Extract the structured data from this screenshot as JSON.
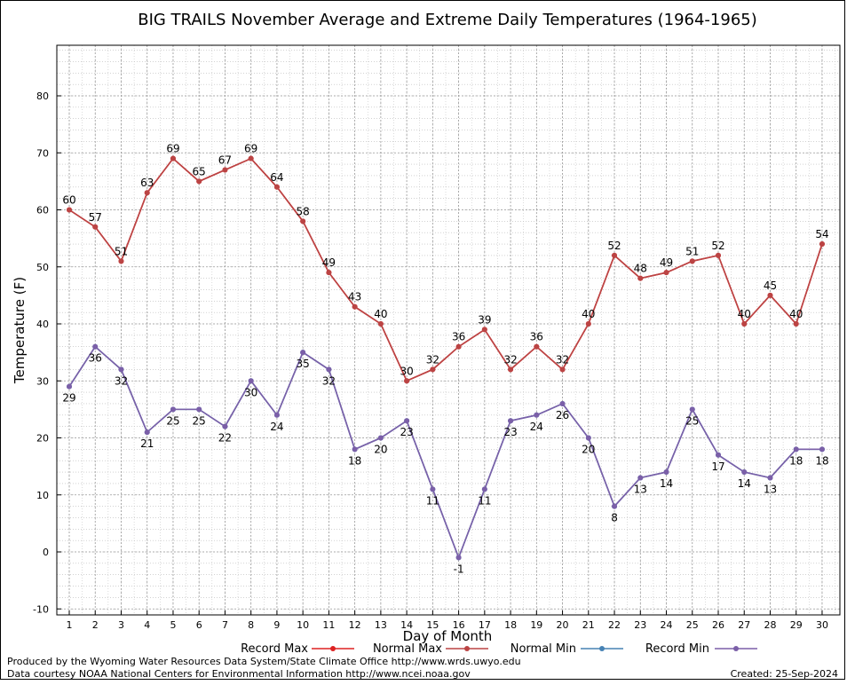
{
  "chart_data": {
    "type": "line",
    "title": "BIG TRAILS November Average and Extreme Daily Temperatures (1964-1965)",
    "xlabel": "Day of Month",
    "ylabel": "Temperature (F)",
    "ylim": [
      -10,
      90
    ],
    "yticks": [
      -10,
      0,
      10,
      20,
      30,
      40,
      50,
      60,
      70,
      80
    ],
    "x": [
      1,
      2,
      3,
      4,
      5,
      6,
      7,
      8,
      9,
      10,
      11,
      12,
      13,
      14,
      15,
      16,
      17,
      18,
      19,
      20,
      21,
      22,
      23,
      24,
      25,
      26,
      27,
      28,
      29,
      30
    ],
    "grid": true,
    "legend_position": "bottom",
    "series": [
      {
        "name": "Record Max",
        "color": "#dd2222",
        "values": [
          60,
          57,
          51,
          63,
          69,
          65,
          67,
          69,
          64,
          58,
          49,
          43,
          40,
          30,
          32,
          36,
          39,
          32,
          36,
          32,
          40,
          52,
          48,
          49,
          51,
          52,
          40,
          45,
          40,
          54
        ]
      },
      {
        "name": "Normal Max",
        "color": "#bb4444",
        "values": [
          60,
          57,
          51,
          63,
          69,
          65,
          67,
          69,
          64,
          58,
          49,
          43,
          40,
          30,
          32,
          36,
          39,
          32,
          36,
          32,
          40,
          52,
          48,
          49,
          51,
          52,
          40,
          45,
          40,
          54
        ]
      },
      {
        "name": "Normal Min",
        "color": "#4682b4",
        "values": [
          29,
          36,
          32,
          21,
          25,
          25,
          22,
          30,
          24,
          35,
          32,
          18,
          20,
          23,
          11,
          -1,
          11,
          23,
          24,
          26,
          20,
          8,
          13,
          14,
          25,
          17,
          14,
          13,
          18,
          18
        ]
      },
      {
        "name": "Record Min",
        "color": "#7b5fa8",
        "values": [
          29,
          36,
          32,
          21,
          25,
          25,
          22,
          30,
          24,
          35,
          32,
          18,
          20,
          23,
          11,
          -1,
          11,
          23,
          24,
          26,
          20,
          8,
          13,
          14,
          25,
          17,
          14,
          13,
          18,
          18
        ]
      }
    ]
  },
  "footer": {
    "line1": "Produced by the Wyoming Water Resources Data System/State Climate Office http://www.wrds.uwyo.edu",
    "line2": "Data courtesy NOAA National Centers for Environmental Information http://www.ncei.noaa.gov",
    "created": "Created:  25-Sep-2024"
  }
}
